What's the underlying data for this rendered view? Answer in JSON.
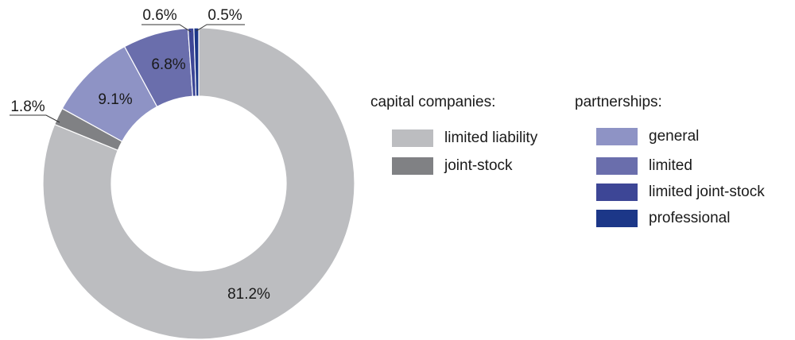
{
  "chart_data": {
    "type": "pie",
    "donut": true,
    "title": "",
    "slices": [
      {
        "label": "limited liability",
        "value": 81.2,
        "value_label": "81.2%",
        "color": "#bcbdc0",
        "group": "capital companies"
      },
      {
        "label": "joint-stock",
        "value": 1.8,
        "value_label": "1.8%",
        "color": "#808184",
        "group": "capital companies"
      },
      {
        "label": "general",
        "value": 9.1,
        "value_label": "9.1%",
        "color": "#8e93c5",
        "group": "partnerships"
      },
      {
        "label": "limited",
        "value": 6.8,
        "value_label": "6.8%",
        "color": "#6a6eac",
        "group": "partnerships"
      },
      {
        "label": "limited joint-stock",
        "value": 0.6,
        "value_label": "0.6%",
        "color": "#3d4696",
        "group": "partnerships"
      },
      {
        "label": "professional",
        "value": 0.5,
        "value_label": "0.5%",
        "color": "#1c3788",
        "group": "partnerships"
      }
    ],
    "legend": {
      "placement": "right",
      "groups": [
        {
          "title": "capital companies:",
          "items": [
            "limited liability",
            "joint-stock"
          ]
        },
        {
          "title": "partnerships:",
          "items": [
            "general",
            "limited",
            "limited joint-stock",
            "professional"
          ]
        }
      ]
    }
  }
}
